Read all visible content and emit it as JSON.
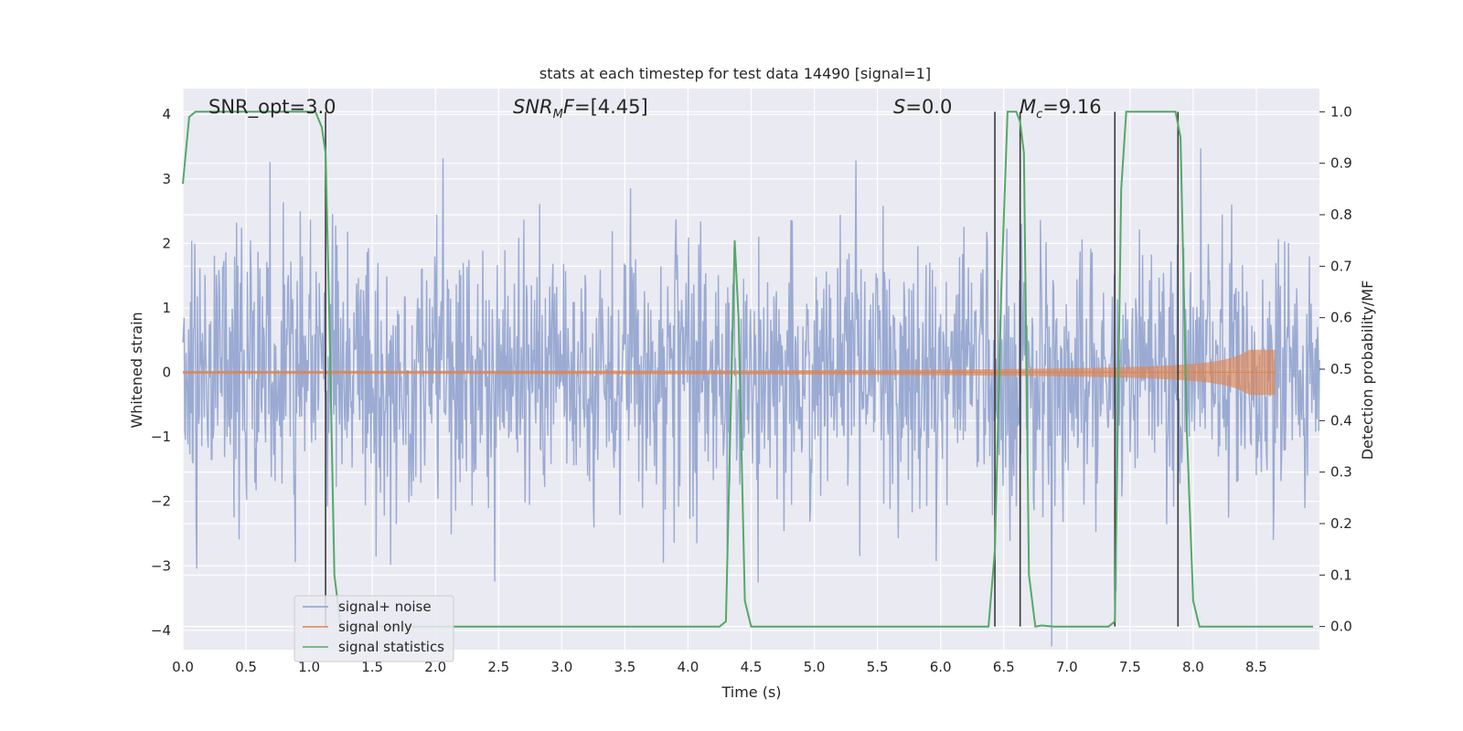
{
  "chart_data": {
    "type": "line",
    "title": "stats at each timestep for test data 14490 [signal=1]",
    "xlabel": "Time (s)",
    "ylabel": "Whitened strain",
    "y2label": "Detection probability/MF",
    "xlim": [
      0,
      9
    ],
    "ylim": [
      -4.3,
      4.4
    ],
    "y2lim": [
      -0.045,
      1.045
    ],
    "xticks": [
      0.0,
      0.5,
      1.0,
      1.5,
      2.0,
      2.5,
      3.0,
      3.5,
      4.0,
      4.5,
      5.0,
      5.5,
      6.0,
      6.5,
      7.0,
      7.5,
      8.0,
      8.5
    ],
    "yticks": [
      -4,
      -3,
      -2,
      -1,
      0,
      1,
      2,
      3,
      4
    ],
    "y2ticks": [
      0.0,
      0.1,
      0.2,
      0.3,
      0.4,
      0.5,
      0.6,
      0.7,
      0.8,
      0.9,
      1.0
    ],
    "grid": true,
    "legend_position": "lower-left",
    "annotations": {
      "snr_opt": "SNR_opt=3.0",
      "snr_mf": "[4.45]",
      "s": "=0.0",
      "mc": "=9.16"
    },
    "series": [
      {
        "name": "signal+ noise",
        "color": "#8c9fcc",
        "axis": "left",
        "envelope_std": 1.0,
        "x_range": [
          0,
          9
        ],
        "samples": 1800
      },
      {
        "name": "signal only",
        "color": "#dd8452",
        "axis": "left",
        "chirp_end": 8.65,
        "peak_amplitude": 0.35
      },
      {
        "name": "signal statistics",
        "color": "#55a868",
        "axis": "right",
        "x": [
          0.0,
          0.05,
          0.1,
          0.2,
          0.5,
          0.8,
          1.0,
          1.05,
          1.1,
          1.13,
          1.16,
          1.2,
          1.25,
          1.3,
          2.0,
          2.5,
          3.0,
          3.5,
          4.0,
          4.25,
          4.3,
          4.37,
          4.4,
          4.45,
          4.5,
          5.0,
          5.5,
          6.0,
          6.3,
          6.38,
          6.43,
          6.48,
          6.53,
          6.6,
          6.63,
          6.66,
          6.7,
          6.75,
          6.8,
          6.9,
          7.0,
          7.2,
          7.33,
          7.38,
          7.43,
          7.47,
          7.5,
          7.6,
          7.8,
          7.86,
          7.9,
          7.95,
          8.0,
          8.05,
          8.5,
          8.95
        ],
        "y": [
          0.86,
          0.99,
          1.0,
          1.0,
          1.0,
          1.0,
          1.0,
          1.0,
          0.97,
          0.92,
          0.6,
          0.1,
          0.0,
          0.0,
          0.0,
          0.0,
          0.0,
          0.0,
          0.0,
          0.0,
          0.01,
          0.75,
          0.6,
          0.05,
          0.0,
          0.0,
          0.0,
          0.0,
          0.0,
          0.0,
          0.15,
          0.65,
          1.0,
          1.0,
          0.98,
          0.92,
          0.1,
          0.0,
          0.002,
          0.0,
          0.0,
          0.0,
          0.0,
          0.01,
          0.85,
          1.0,
          1.0,
          1.0,
          1.0,
          1.0,
          0.95,
          0.38,
          0.05,
          0.0,
          0.0,
          0.0
        ]
      }
    ],
    "vlines": [
      1.13,
      6.43,
      6.63,
      7.38,
      7.88
    ]
  }
}
